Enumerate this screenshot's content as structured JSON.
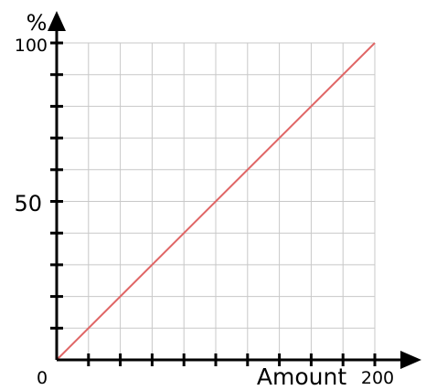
{
  "chart_data": {
    "type": "line",
    "ylabel": "%",
    "xlabel": "Amount",
    "x_tick_labels": [
      "0",
      "200"
    ],
    "y_tick_labels": [
      "100",
      "50"
    ],
    "xlim": [
      0,
      200
    ],
    "ylim": [
      0,
      100
    ],
    "grid": true,
    "x_minor_ticks": 10,
    "y_minor_ticks": 10,
    "series": [
      {
        "x": [
          0,
          200
        ],
        "y": [
          0,
          100
        ],
        "color": "#e06666"
      }
    ],
    "colors": {
      "axis": "#000000",
      "grid": "#c8c8c8"
    }
  }
}
